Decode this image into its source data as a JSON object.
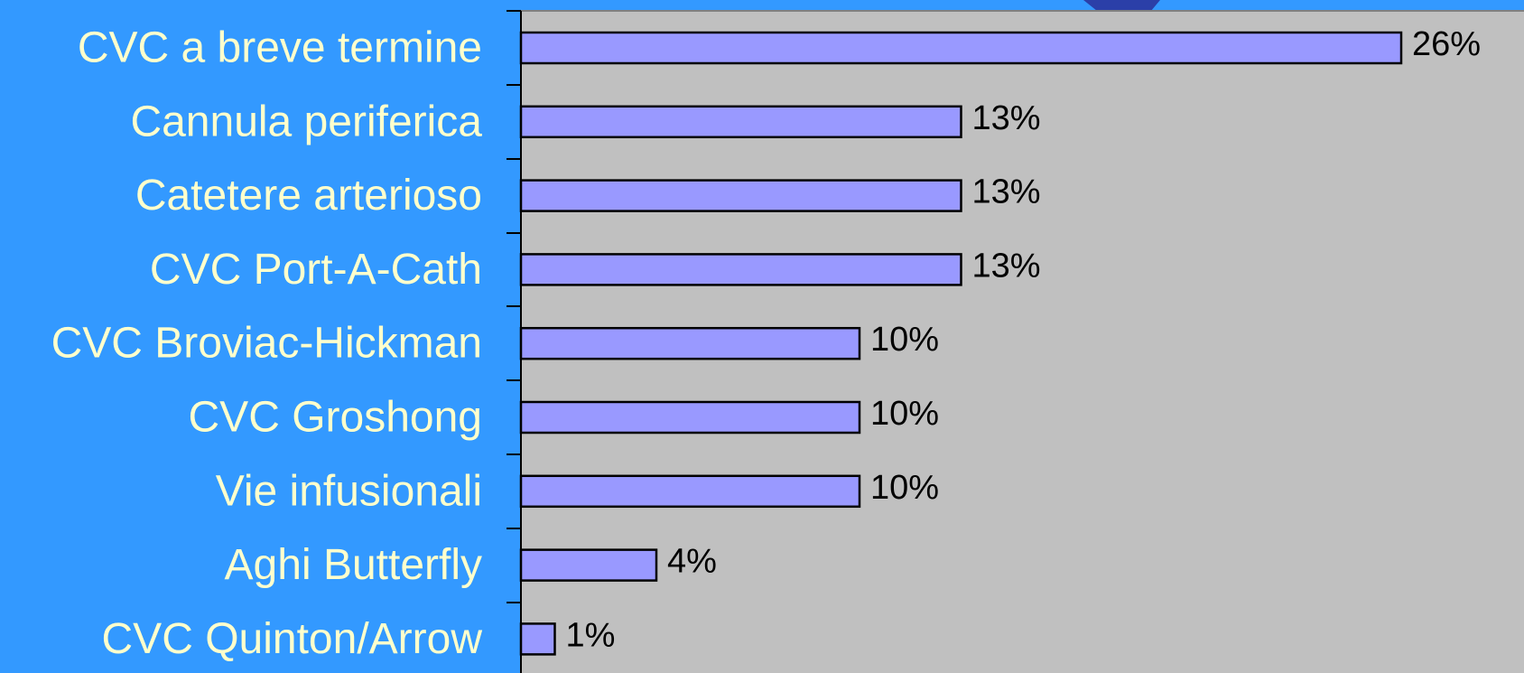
{
  "chart_data": {
    "type": "bar",
    "orientation": "horizontal",
    "categories": [
      "CVC a breve termine",
      "Cannula periferica",
      "Catetere arterioso",
      "CVC Port-A-Cath",
      "CVC Broviac-Hickman",
      "CVC Groshong",
      "Vie infusionali",
      "Aghi Butterfly",
      "CVC Quinton/Arrow"
    ],
    "values": [
      26,
      13,
      13,
      13,
      10,
      10,
      10,
      4,
      1
    ],
    "data_labels": [
      "26%",
      "13%",
      "13%",
      "13%",
      "10%",
      "10%",
      "10%",
      "4%",
      "1%"
    ],
    "title": "",
    "xlabel": "",
    "ylabel": "",
    "xlim": [
      0,
      30
    ],
    "grid": false,
    "legend": "none"
  },
  "colors": {
    "page_background": "#3399ff",
    "plot_background": "#c0c0c0",
    "bar_fill": "#9999ff",
    "bar_stroke": "#000000",
    "category_label": "#ffffcc",
    "value_label": "#000000",
    "corner_accent": "#2b3fa8"
  }
}
